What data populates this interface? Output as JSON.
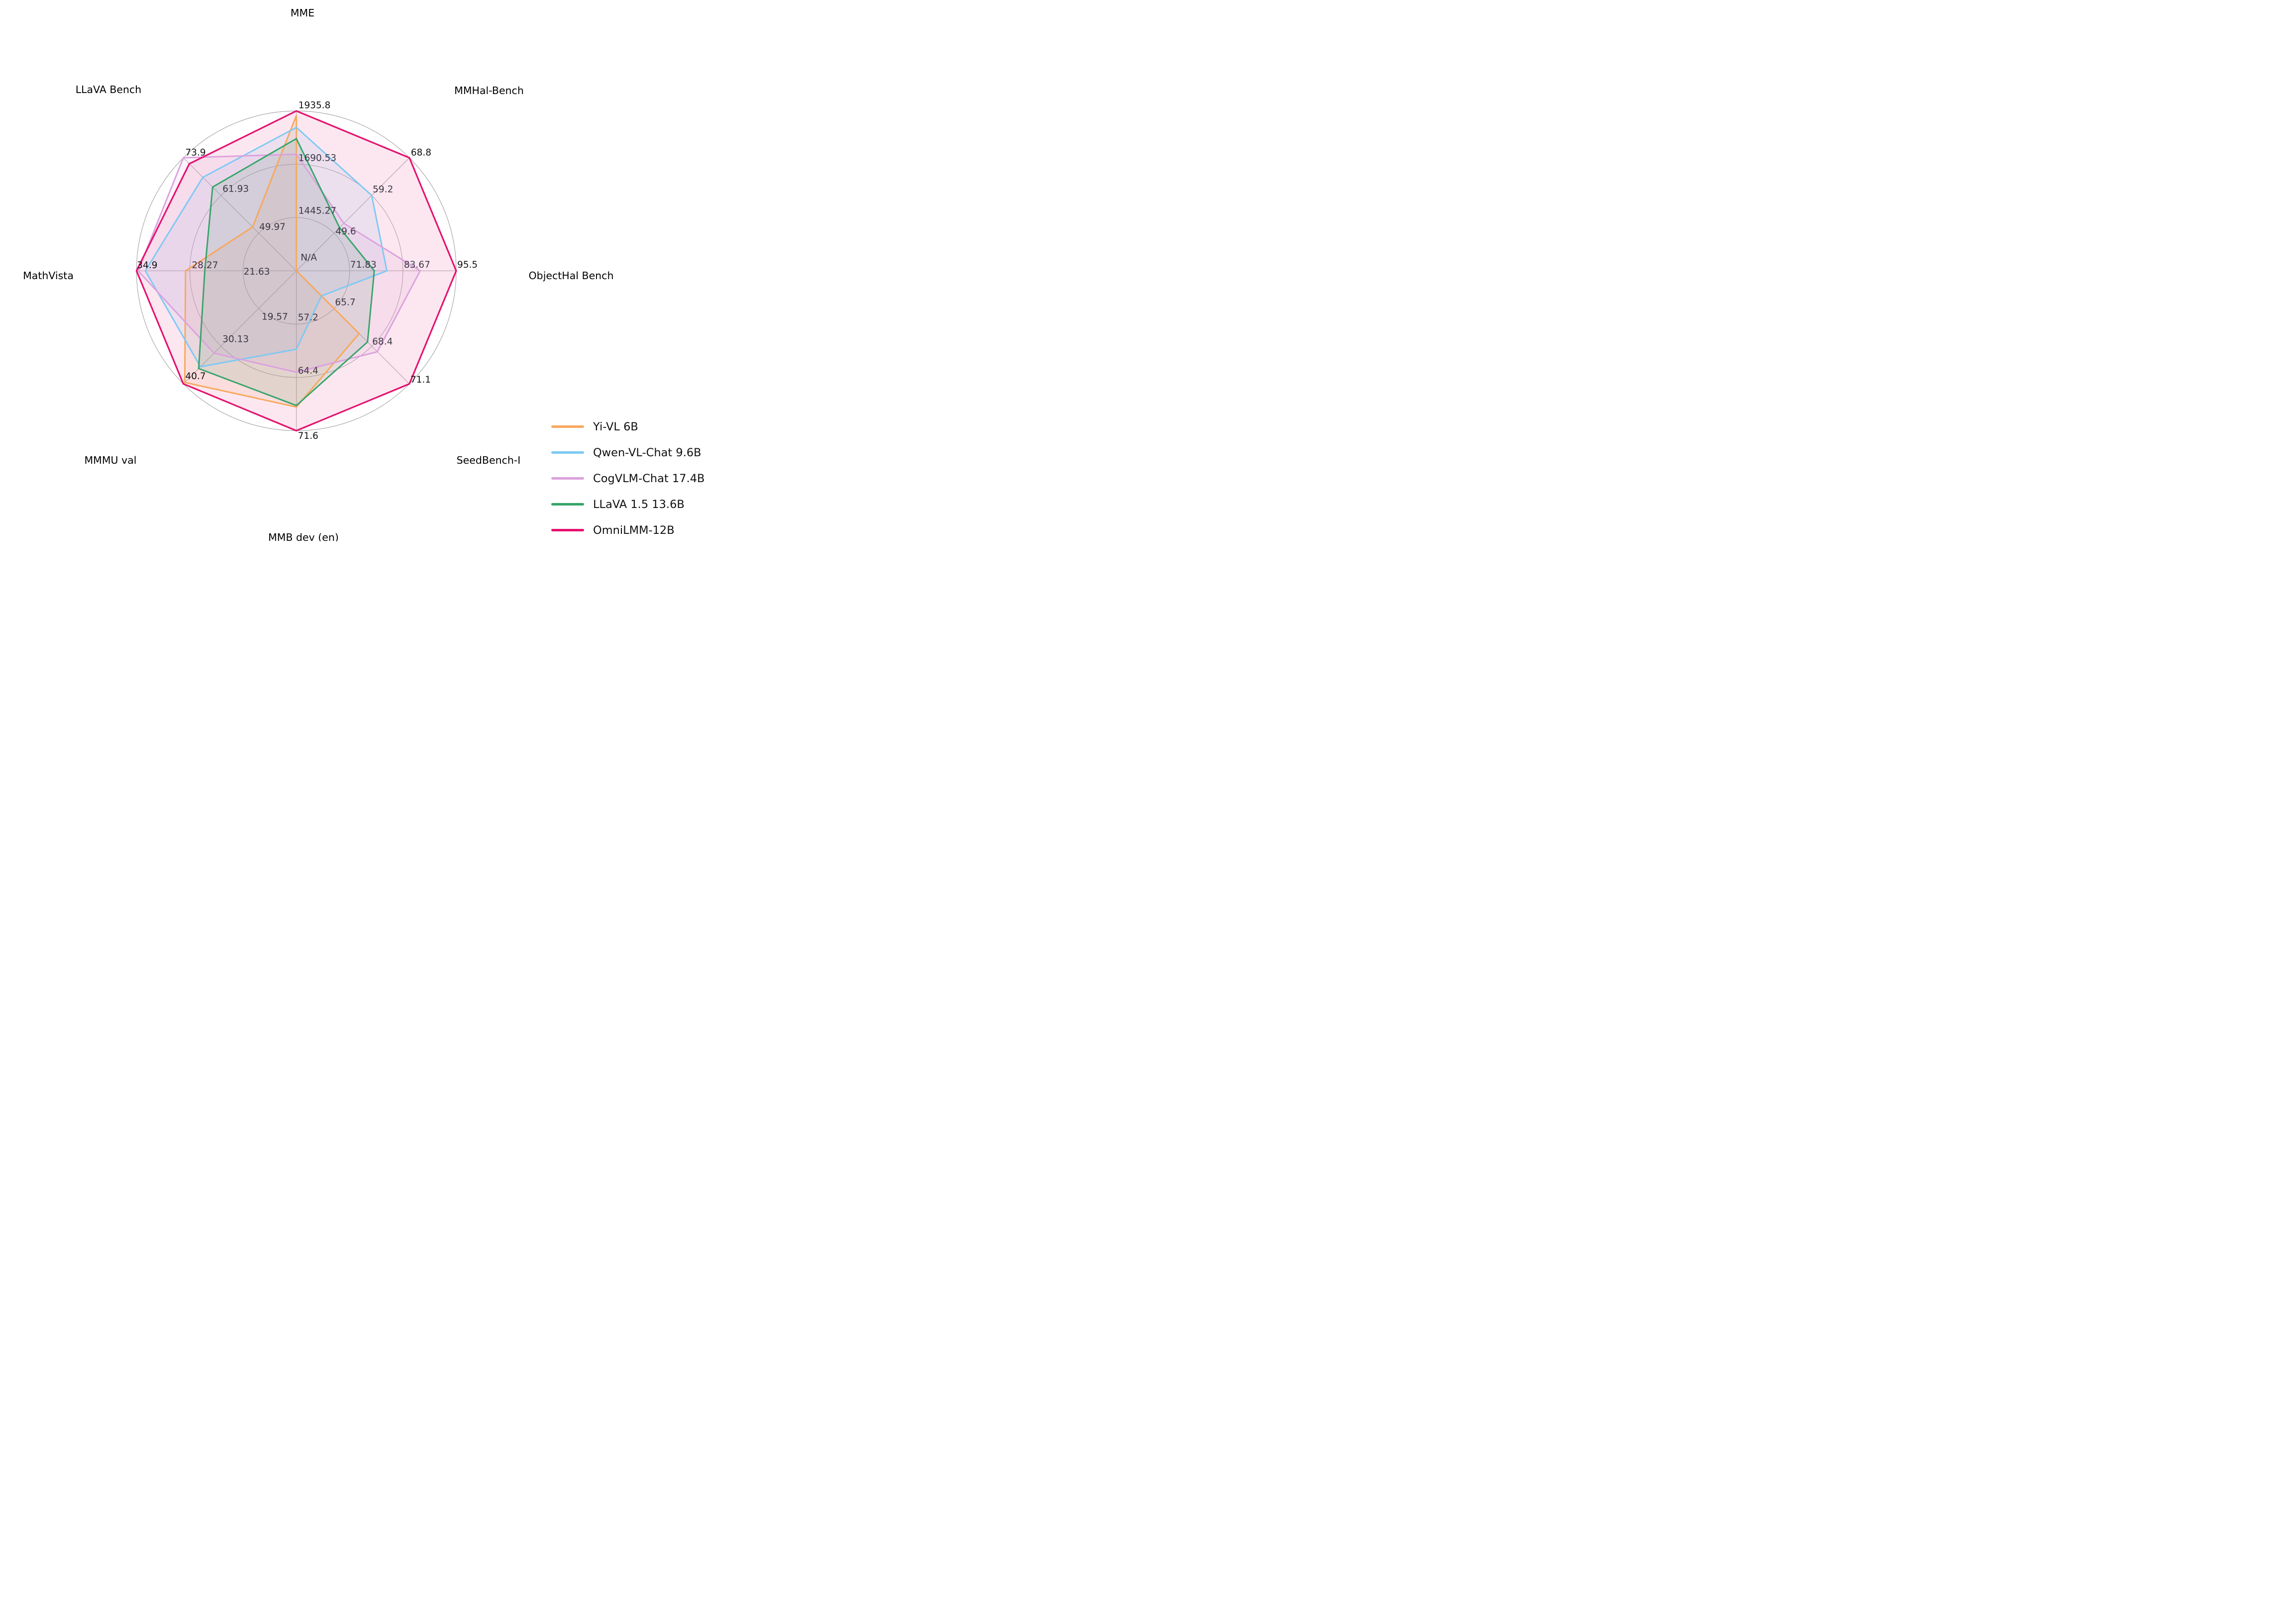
{
  "figure": {
    "background": "#ffffff",
    "center_label": "N/A"
  },
  "chart_data": {
    "type": "radar",
    "grid": {
      "rings": 3,
      "shape": "circle",
      "color": "#a9a9a9",
      "legend_position": "lower right"
    },
    "axes": [
      {
        "label": "MME",
        "angle_deg": 90,
        "scale_min": 1200.01,
        "scale_min_display": "N/A",
        "scale_max": 1935.8,
        "ticks": [
          "1445.27",
          "1690.53",
          "1935.8"
        ]
      },
      {
        "label": "MMHal-Bench",
        "angle_deg": 45,
        "scale_min": 40.0,
        "scale_max": 68.8,
        "ticks": [
          "49.6",
          "59.2",
          "68.8"
        ]
      },
      {
        "label": "ObjectHal Bench",
        "angle_deg": 0,
        "scale_min": 59.99,
        "scale_max": 95.5,
        "ticks": [
          "71.83",
          "83.67",
          "95.5"
        ]
      },
      {
        "label": "SeedBench-I",
        "angle_deg": -45,
        "scale_min": 63.0,
        "scale_max": 71.1,
        "ticks": [
          "65.7",
          "68.4",
          "71.1"
        ]
      },
      {
        "label": "MMB dev (en)",
        "angle_deg": -90,
        "scale_min": 50.0,
        "scale_max": 71.6,
        "ticks": [
          "57.2",
          "64.4",
          "71.6"
        ]
      },
      {
        "label": "MMMU val",
        "angle_deg": -135,
        "scale_min": 9.0,
        "scale_max": 40.7,
        "ticks": [
          "19.57",
          "30.13",
          "40.7"
        ]
      },
      {
        "label": "MathVista",
        "angle_deg": 180,
        "scale_min": 15.0,
        "scale_max": 34.9,
        "ticks": [
          "21.63",
          "28.27",
          "34.9"
        ]
      },
      {
        "label": "LLaVA Bench",
        "angle_deg": 135,
        "scale_min": 38.0,
        "scale_max": 73.9,
        "ticks": [
          "49.97",
          "61.93",
          "73.9"
        ]
      }
    ],
    "series": [
      {
        "name": "Yi-VL 6B",
        "color": "#F7A85C",
        "values": [
          1915.1,
          null,
          null,
          67.5,
          68.4,
          40.3,
          28.8,
          51.9
        ]
      },
      {
        "name": "Qwen-VL-Chat 9.6B",
        "color": "#7EC9F4",
        "values": [
          1860.0,
          59.2,
          80.1,
          64.8,
          60.6,
          35.9,
          33.8,
          67.7
        ]
      },
      {
        "name": "CogVLM-Chat 17.4B",
        "color": "#DCA1DF",
        "values": [
          1736.6,
          52.1,
          87.5,
          68.8,
          63.7,
          32.1,
          34.7,
          73.9
        ]
      },
      {
        "name": "LLaVA 1.5 13.6B",
        "color": "#36A569",
        "values": [
          1808.4,
          51.0,
          77.3,
          68.1,
          68.2,
          36.4,
          26.4,
          64.6
        ]
      },
      {
        "name": "OmniLMM-12B",
        "color": "#E4126F",
        "values": [
          1935.8,
          68.8,
          95.5,
          71.1,
          71.6,
          40.7,
          34.9,
          72.0
        ]
      }
    ],
    "na_values_plotted_at_center": "N/A"
  }
}
